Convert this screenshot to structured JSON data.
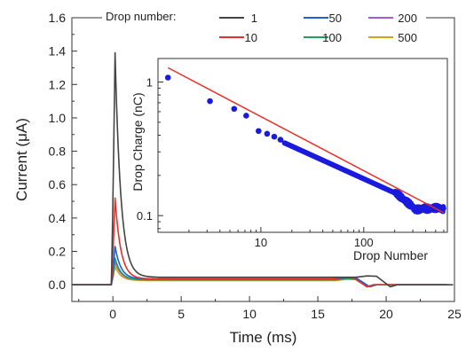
{
  "chart_data": [
    {
      "type": "line",
      "xlabel": "Time (ms)",
      "ylabel": "Current (μA)",
      "xlim": [
        -3,
        25
      ],
      "ylim": [
        -0.1,
        1.6
      ],
      "x_ticks": [
        "0",
        "5",
        "10",
        "15",
        "20",
        "25"
      ],
      "y_ticks": [
        "0.0",
        "0.2",
        "0.4",
        "0.6",
        "0.8",
        "1.0",
        "1.2",
        "1.4",
        "1.6"
      ],
      "legend": {
        "title": "Drop number:",
        "position": "top"
      },
      "series": [
        {
          "name": "1",
          "color": "#444444",
          "peak": 1.39,
          "plateau": 0.045,
          "fall_start": 19.3,
          "fall_end": 20.3
        },
        {
          "name": "10",
          "color": "#e8302a",
          "peak": 0.52,
          "plateau": 0.035,
          "fall_start": 17.6,
          "fall_end": 18.6
        },
        {
          "name": "50",
          "color": "#1e5fd8",
          "peak": 0.23,
          "plateau": 0.035,
          "fall_start": 17.8,
          "fall_end": 18.8
        },
        {
          "name": "100",
          "color": "#1fa15c",
          "peak": 0.16,
          "plateau": 0.03,
          "fall_start": 17.8,
          "fall_end": 18.6
        },
        {
          "name": "200",
          "color": "#a25ad9",
          "peak": 0.14,
          "plateau": 0.03,
          "fall_start": 17.8,
          "fall_end": 18.6
        },
        {
          "name": "500",
          "color": "#d4a017",
          "peak": 0.11,
          "plateau": 0.025,
          "fall_start": 17.8,
          "fall_end": 18.6
        }
      ]
    },
    {
      "type": "scatter",
      "xlabel": "Drop Number",
      "ylabel": "Drop Charge (nC)",
      "xscale": "log",
      "yscale": "log",
      "xlim": [
        1,
        650
      ],
      "ylim": [
        0.075,
        1.5
      ],
      "x_ticks": [
        "10",
        "100"
      ],
      "y_ticks": [
        "1",
        "0.1"
      ],
      "marker_color": "#1a1adf",
      "fit_color": "#e8302a",
      "points": [
        [
          1.25,
          1.08
        ],
        [
          3.2,
          0.72
        ],
        [
          5.5,
          0.63
        ],
        [
          7.2,
          0.56
        ],
        [
          9.5,
          0.43
        ],
        [
          11.5,
          0.41
        ],
        [
          13.5,
          0.39
        ],
        [
          15.5,
          0.37
        ]
      ],
      "dense_points": {
        "x_start": 17,
        "x_end": 200,
        "y_start": 0.35,
        "y_end": 0.148,
        "count": 140
      },
      "tail_points": {
        "x_start": 200,
        "x_end": 600,
        "y_level": 0.113,
        "count": 120
      },
      "fit_line": [
        [
          1.25,
          1.28
        ],
        [
          600,
          0.105
        ]
      ]
    }
  ]
}
